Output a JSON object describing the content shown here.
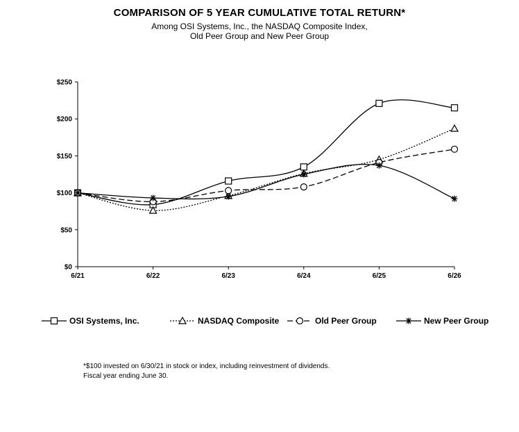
{
  "title": "COMPARISON OF 5 YEAR CUMULATIVE TOTAL RETURN*",
  "subtitle_line1": "Among OSI Systems, Inc., the NASDAQ Composite Index,",
  "subtitle_line2": "Old Peer Group and New Peer Group",
  "footnote_line1": "*$100 invested on 6/30/21 in stock or index, including reinvestment of dividends.",
  "footnote_line2": "Fiscal year ending June 30.",
  "chart_data": {
    "type": "line",
    "categories": [
      "6/21",
      "6/22",
      "6/23",
      "6/24",
      "6/25",
      "6/26"
    ],
    "ylim": [
      0,
      250
    ],
    "yticks": [
      0,
      50,
      100,
      150,
      200,
      250
    ],
    "ytick_labels": [
      "$0",
      "$50",
      "$100",
      "$150",
      "$200",
      "$250"
    ],
    "grid": false,
    "legend_position": "bottom",
    "series": [
      {
        "name": "OSI Systems, Inc.",
        "values": [
          100,
          84,
          116,
          135,
          221,
          215
        ],
        "marker": "square",
        "dash": "solid"
      },
      {
        "name": "NASDAQ Composite",
        "values": [
          100,
          76,
          96,
          126,
          145,
          187
        ],
        "marker": "triangle",
        "dash": "dotted"
      },
      {
        "name": "Old Peer Group",
        "values": [
          100,
          88,
          103,
          108,
          141,
          159
        ],
        "marker": "circle",
        "dash": "dashed"
      },
      {
        "name": "New Peer Group",
        "values": [
          100,
          93,
          95,
          125,
          137,
          92
        ],
        "marker": "star",
        "dash": "solid"
      }
    ]
  }
}
